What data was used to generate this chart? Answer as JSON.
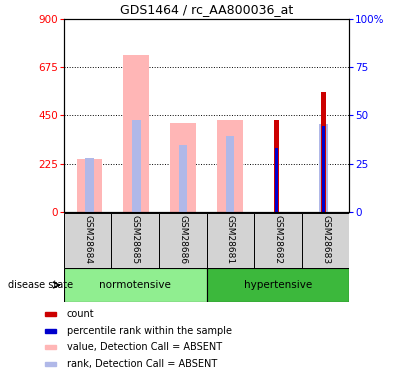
{
  "title": "GDS1464 / rc_AA800036_at",
  "samples": [
    "GSM28684",
    "GSM28685",
    "GSM28686",
    "GSM28681",
    "GSM28682",
    "GSM28683"
  ],
  "ylim_left": [
    0,
    900
  ],
  "ylim_right": [
    0,
    100
  ],
  "yticks_left": [
    0,
    225,
    450,
    675,
    900
  ],
  "yticks_right": [
    0,
    25,
    50,
    75,
    100
  ],
  "value_absent": [
    245,
    730,
    415,
    430,
    0,
    0
  ],
  "rank_absent": [
    250,
    430,
    310,
    355,
    0,
    410
  ],
  "count_val": [
    0,
    0,
    0,
    0,
    430,
    560
  ],
  "percentile_val": [
    0,
    0,
    0,
    0,
    300,
    400
  ],
  "color_value_absent": "#FFB6B6",
  "color_rank_absent": "#B0B8E8",
  "color_count": "#CC0000",
  "color_percentile": "#0000CC",
  "normotensive_color": "#90EE90",
  "hypertensive_color": "#3CB83C",
  "label_bg": "#D3D3D3",
  "bar_wide": 0.55,
  "bar_mid": 0.18,
  "bar_narrow": 0.1,
  "bar_vnarrow": 0.07
}
